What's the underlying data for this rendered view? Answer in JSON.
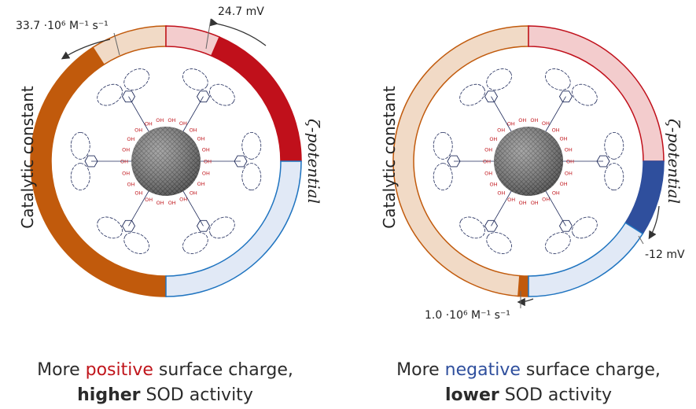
{
  "colors": {
    "catalytic_full": "#c15a0c",
    "catalytic_light": "#f1dac6",
    "catalytic_border": "#c15a0c",
    "positive_full": "#c0101b",
    "positive_light": "#f3cccd",
    "negative_full": "#2f4f9d",
    "negative_light": "#e1e9f6",
    "negative_border": "#1f74c0",
    "nanoparticle": "#8c8c8c",
    "ligand": "#1f2a5a",
    "hydroxyl": "#c0151b"
  },
  "panels": [
    {
      "id": "left",
      "catalytic_label": "Catalytic constant",
      "zeta_label": "ζ-potential",
      "catalytic_value_text": "33.7 ·10⁶ M⁻¹ s⁻¹",
      "zeta_value_text": "24.7 mV",
      "catalytic_constant_1e6_per_M_per_s": 33.7,
      "zeta_potential_mV": 24.7,
      "caption_line1_prefix": "More ",
      "caption_keyword": "positive",
      "caption_line1_suffix": " surface charge,",
      "caption_line2_bold": "higher",
      "caption_line2_rest": " SOD activity"
    },
    {
      "id": "right",
      "catalytic_label": "Catalytic constant",
      "zeta_label": "ζ-potential",
      "catalytic_value_text": "1.0 ·10⁶ M⁻¹ s⁻¹",
      "zeta_value_text": "-12 mV",
      "catalytic_constant_1e6_per_M_per_s": 1.0,
      "zeta_potential_mV": -12,
      "caption_line1_prefix": "More ",
      "caption_keyword": "negative",
      "caption_line1_suffix": " surface charge,",
      "caption_line2_bold": "lower",
      "caption_line2_rest": " SOD activity"
    }
  ]
}
